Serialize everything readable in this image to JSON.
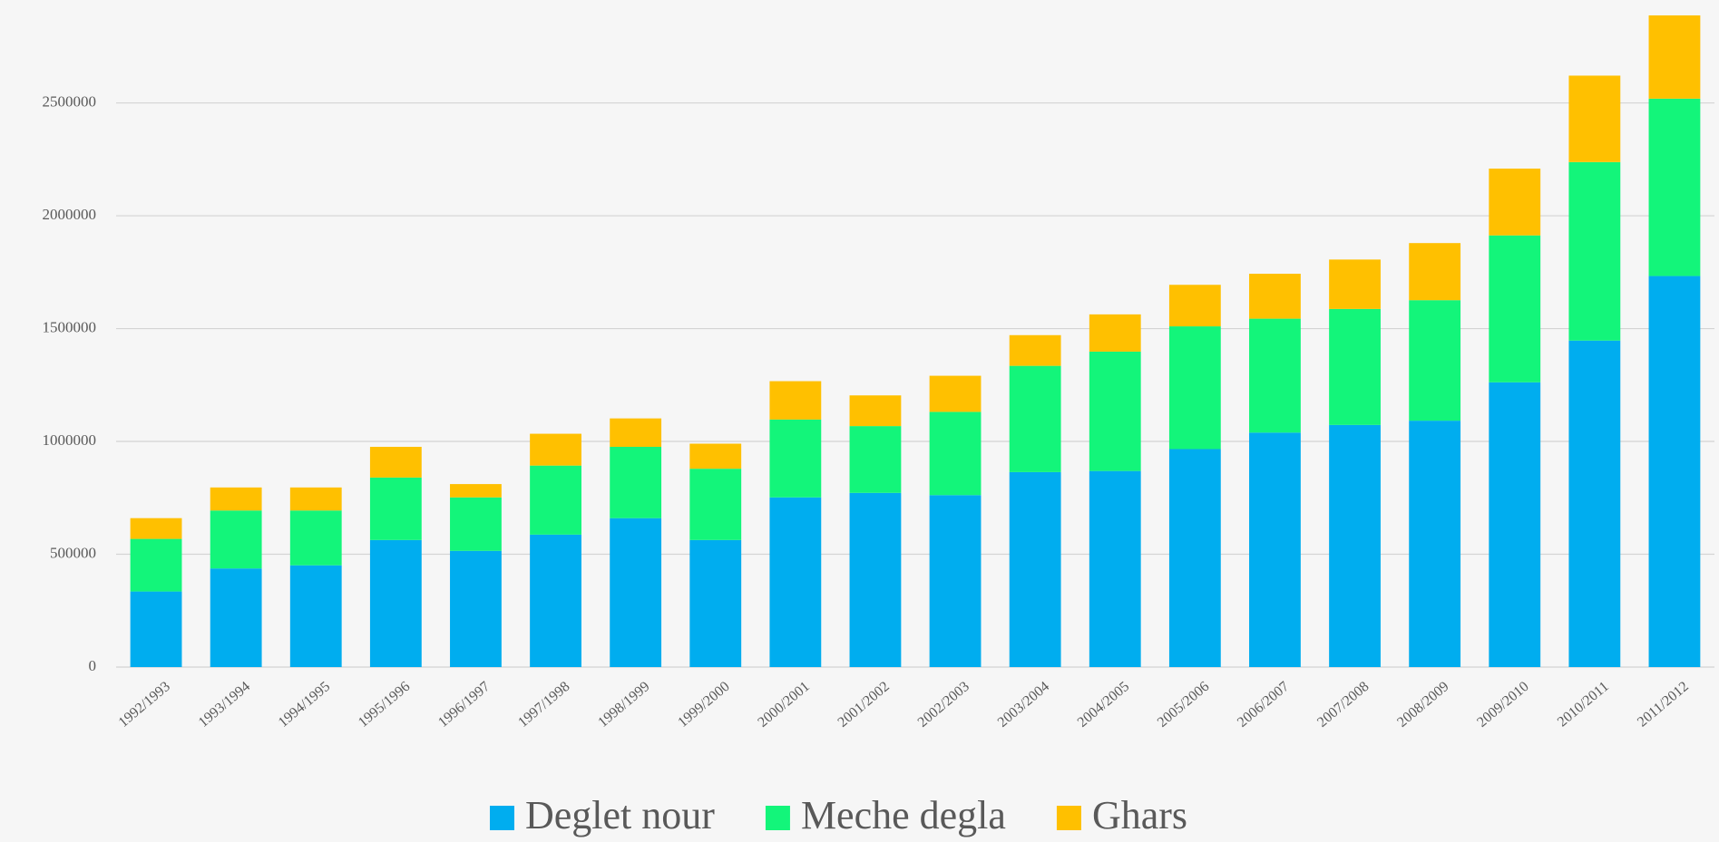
{
  "chart_data": {
    "type": "stacked_bar",
    "categories": [
      "1992/1993",
      "1993/1994",
      "1994/1995",
      "1995/1996",
      "1996/1997",
      "1997/1998",
      "1998/1999",
      "1999/2000",
      "2000/2001",
      "2001/2002",
      "2002/2003",
      "2003/2004",
      "2004/2005",
      "2005/2006",
      "2006/2007",
      "2007/2008",
      "2008/2009",
      "2009/2010",
      "2010/2011",
      "2011/2012"
    ],
    "series": [
      {
        "name": "Deglet nour",
        "color": "#00adef",
        "values": [
          335000,
          437000,
          451000,
          563000,
          515000,
          587000,
          660000,
          563000,
          752000,
          772000,
          762000,
          864000,
          869000,
          966000,
          1039000,
          1073000,
          1092000,
          1262000,
          1447000,
          1733000
        ]
      },
      {
        "name": "Meche degla",
        "color": "#13f57a",
        "values": [
          233000,
          257000,
          243000,
          277000,
          237000,
          306000,
          316000,
          316000,
          345000,
          296000,
          369000,
          471000,
          529000,
          544000,
          505000,
          514000,
          534000,
          651000,
          791000,
          786000
        ]
      },
      {
        "name": "Ghars",
        "color": "#ffc000",
        "values": [
          92000,
          102000,
          102000,
          136000,
          59000,
          141000,
          126000,
          111000,
          170000,
          136000,
          160000,
          136000,
          165000,
          184000,
          199000,
          219000,
          253000,
          296000,
          383000,
          369000
        ]
      }
    ],
    "ylim": [
      0,
      2900000
    ],
    "yticks": [
      0,
      500000,
      1000000,
      1500000,
      2000000,
      2500000
    ],
    "grid": true,
    "legend": "bottom"
  }
}
